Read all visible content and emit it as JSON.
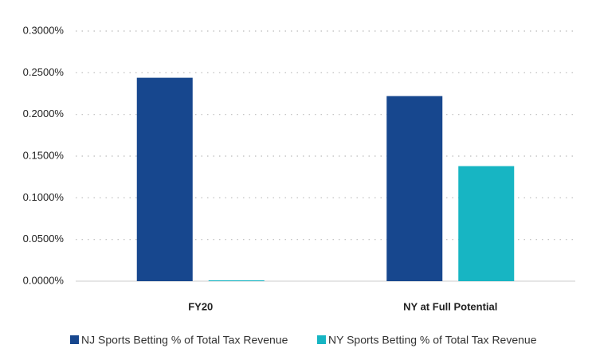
{
  "chart_data": {
    "type": "bar",
    "categories": [
      "FY20",
      "NY at Full Potential"
    ],
    "series": [
      {
        "name": "NJ Sports Betting % of Total Tax Revenue",
        "color": "#17478e",
        "values": [
          0.244,
          0.222
        ]
      },
      {
        "name": "NY Sports Betting % of Total Tax Revenue",
        "color": "#17b5c3",
        "values": [
          0.001,
          0.138
        ]
      }
    ],
    "ylim": [
      0,
      0.3
    ],
    "yticks": [
      {
        "value": 0,
        "label": "0.0000%"
      },
      {
        "value": 0.05,
        "label": "0.0500%"
      },
      {
        "value": 0.1,
        "label": "0.1000%"
      },
      {
        "value": 0.15,
        "label": "0.1500%"
      },
      {
        "value": 0.2,
        "label": "0.2000%"
      },
      {
        "value": 0.25,
        "label": "0.2500%"
      },
      {
        "value": 0.3,
        "label": "0.3000%"
      }
    ],
    "grid": true
  }
}
